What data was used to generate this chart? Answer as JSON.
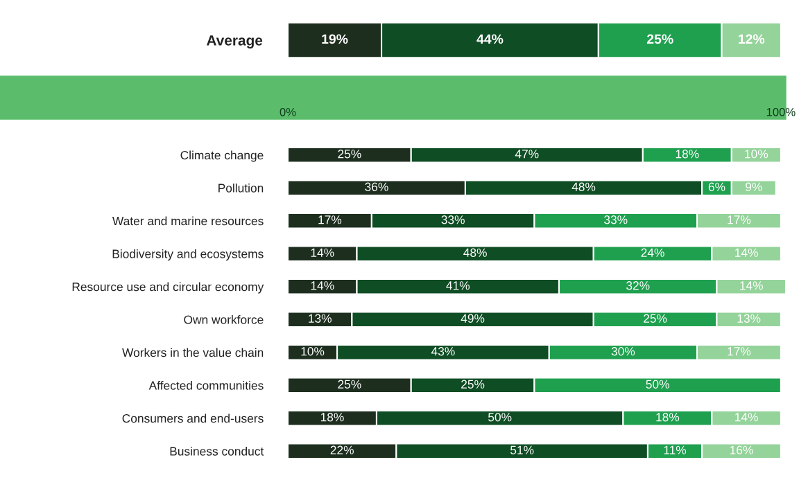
{
  "chart_data": [
    {
      "type": "bar",
      "orientation": "horizontal",
      "stacked": true,
      "categories": [
        "Average"
      ],
      "xlim": [
        0,
        101
      ],
      "xticks": [
        {
          "value": 0,
          "label": "0%"
        },
        {
          "value": 100,
          "label": "100%"
        }
      ],
      "series": [
        {
          "color": "#1d2e1f",
          "values": [
            19
          ],
          "value_labels": [
            "19%"
          ]
        },
        {
          "color": "#0f4d24",
          "values": [
            44
          ],
          "value_labels": [
            "44%"
          ]
        },
        {
          "color": "#1fa04f",
          "values": [
            25
          ],
          "value_labels": [
            "25%"
          ]
        },
        {
          "color": "#94d39a",
          "values": [
            12
          ],
          "value_labels": [
            "12%"
          ]
        }
      ]
    },
    {
      "type": "bar",
      "orientation": "horizontal",
      "stacked": true,
      "tick_labels": "y",
      "xlim": [
        0,
        101
      ],
      "categories": [
        "Climate change",
        "Pollution",
        "Water and marine resources",
        "Biodiversity and ecosystems",
        "Resource use and circular economy",
        "Own workforce",
        "Workers in the value chain",
        "Affected communities",
        "Consumers and end-users",
        "Business conduct"
      ],
      "series": [
        {
          "color": "#1d2e1f",
          "values": [
            25,
            36,
            17,
            14,
            14,
            13,
            10,
            25,
            18,
            22
          ],
          "value_labels": [
            "25%",
            "36%",
            "17%",
            "14%",
            "14%",
            "13%",
            "10%",
            "25%",
            "18%",
            "22%"
          ]
        },
        {
          "color": "#0f4d24",
          "values": [
            47,
            48,
            33,
            48,
            41,
            49,
            43,
            25,
            50,
            51
          ],
          "value_labels": [
            "47%",
            "48%",
            "33%",
            "48%",
            "41%",
            "49%",
            "43%",
            "25%",
            "50%",
            "51%"
          ]
        },
        {
          "color": "#1fa04f",
          "values": [
            18,
            6,
            33,
            24,
            32,
            25,
            30,
            50,
            18,
            11
          ],
          "value_labels": [
            "18%",
            "6%",
            "33%",
            "24%",
            "32%",
            "25%",
            "30%",
            "50%",
            "18%",
            "11%"
          ]
        },
        {
          "color": "#94d39a",
          "values": [
            10,
            9,
            17,
            14,
            14,
            13,
            17,
            null,
            14,
            16
          ],
          "value_labels": [
            "10%",
            "9%",
            "17%",
            "14%",
            "14%",
            "13%",
            "17%",
            null,
            "14%",
            "16%"
          ]
        }
      ]
    }
  ]
}
